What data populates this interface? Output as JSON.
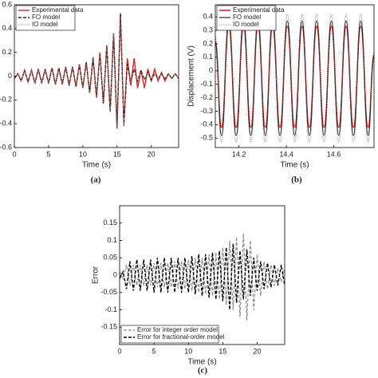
{
  "chart_data": [
    {
      "type": "line",
      "caption": "(a)",
      "xlabel": "Time (s)",
      "smooth": false,
      "legend": "top-left",
      "xlim": [
        0,
        24
      ],
      "xticks": [
        0,
        5,
        10,
        15,
        20
      ],
      "ylim": [
        -0.6,
        0.6
      ],
      "yticks": [
        -0.6,
        -0.4,
        -0.2,
        0,
        0.2,
        0.4,
        0.6
      ],
      "x": [
        0,
        0.5,
        1,
        1.5,
        2,
        2.5,
        3,
        3.5,
        4,
        4.5,
        5,
        5.5,
        6,
        6.5,
        7,
        7.5,
        8,
        8.5,
        9,
        9.5,
        10,
        10.5,
        11,
        11.5,
        12,
        12.5,
        13,
        13.5,
        14,
        14.5,
        15,
        15.5,
        16,
        16.5,
        17,
        17.5,
        18,
        18.5,
        19,
        19.5,
        20,
        20.5,
        21,
        21.5,
        22,
        22.5,
        23,
        23.5,
        24
      ],
      "series": [
        {
          "name": "Experimental data",
          "color": "#e0201b",
          "dash": "solid",
          "width": 1.4,
          "values": [
            -0.02,
            0.02,
            -0.04,
            0.05,
            -0.05,
            0.05,
            -0.06,
            0.06,
            -0.06,
            0.06,
            -0.06,
            0.07,
            -0.07,
            0.07,
            -0.07,
            0.08,
            -0.08,
            0.08,
            -0.09,
            0.1,
            -0.1,
            0.12,
            -0.14,
            0.16,
            -0.18,
            0.2,
            -0.23,
            0.26,
            -0.3,
            0.36,
            -0.44,
            0.53,
            -0.4,
            0.15,
            -0.08,
            0.15,
            -0.1,
            0.05,
            -0.1,
            0.06,
            -0.04,
            0.06,
            -0.04,
            0.03,
            -0.04,
            0.02,
            -0.02,
            0.02,
            -0.02
          ]
        },
        {
          "name": "FO model",
          "color": "#000000",
          "dash": "dashed",
          "width": 1.2,
          "values": [
            -0.02,
            0.02,
            -0.04,
            0.05,
            -0.05,
            0.05,
            -0.06,
            0.06,
            -0.06,
            0.06,
            -0.06,
            0.07,
            -0.07,
            0.07,
            -0.07,
            0.08,
            -0.08,
            0.08,
            -0.09,
            0.1,
            -0.1,
            0.12,
            -0.14,
            0.16,
            -0.18,
            0.2,
            -0.23,
            0.26,
            -0.3,
            0.36,
            -0.44,
            0.52,
            -0.42,
            0.1,
            -0.05,
            0.06,
            -0.04,
            0.05,
            -0.03,
            0.03,
            -0.03,
            0.02,
            -0.02,
            0.02,
            -0.02,
            0.02,
            -0.02,
            0.02,
            -0.02
          ]
        },
        {
          "name": "IO model",
          "color": "#8c8c8c",
          "dash": "dotted",
          "width": 1,
          "values": [
            -0.02,
            0.02,
            -0.04,
            0.05,
            -0.05,
            0.05,
            -0.06,
            0.06,
            -0.06,
            0.06,
            -0.06,
            0.07,
            -0.07,
            0.07,
            -0.07,
            0.08,
            -0.08,
            0.08,
            -0.09,
            0.1,
            -0.1,
            0.12,
            -0.14,
            0.16,
            -0.18,
            0.2,
            -0.23,
            0.26,
            -0.3,
            0.36,
            -0.44,
            0.5,
            -0.42,
            0.08,
            -0.05,
            0.05,
            -0.04,
            0.04,
            -0.03,
            0.03,
            -0.02,
            0.02,
            -0.02,
            0.02,
            -0.02,
            0.02,
            -0.02,
            0.02,
            -0.02
          ]
        }
      ]
    },
    {
      "type": "line",
      "caption": "(b)",
      "xlabel": "Time (s)",
      "ylabel": "Displacement (V)",
      "smooth": true,
      "legend": "top-left",
      "xlim": [
        14.1,
        14.77
      ],
      "xticks": [
        14.2,
        14.4,
        14.6
      ],
      "ylim": [
        -0.57,
        0.49
      ],
      "yticks": [
        -0.5,
        -0.4,
        -0.3,
        -0.2,
        -0.1,
        0,
        0.1,
        0.2,
        0.3,
        0.4
      ],
      "x": [
        14.1,
        14.126,
        14.157,
        14.188,
        14.219,
        14.25,
        14.28,
        14.311,
        14.342,
        14.373,
        14.404,
        14.435,
        14.466,
        14.497,
        14.528,
        14.559,
        14.59,
        14.621,
        14.652,
        14.683,
        14.714,
        14.745,
        14.77
      ],
      "series": [
        {
          "name": "Experimental data",
          "color": "#e0201b",
          "dash": "solid",
          "width": 1.6,
          "values": [
            0.2,
            -0.42,
            0.33,
            -0.42,
            0.33,
            -0.42,
            0.33,
            -0.42,
            0.33,
            -0.42,
            0.33,
            -0.42,
            0.33,
            -0.42,
            0.33,
            -0.42,
            0.33,
            -0.42,
            0.33,
            -0.42,
            0.33,
            -0.42,
            0.1
          ]
        },
        {
          "name": "FO model",
          "color": "#000000",
          "dash": "solid",
          "width": 1,
          "values": [
            0.22,
            -0.48,
            0.37,
            -0.48,
            0.37,
            -0.48,
            0.37,
            -0.48,
            0.37,
            -0.48,
            0.37,
            -0.48,
            0.37,
            -0.48,
            0.37,
            -0.48,
            0.37,
            -0.48,
            0.37,
            -0.48,
            0.37,
            -0.48,
            0.12
          ]
        },
        {
          "name": "IO model",
          "color": "#8c8c8c",
          "dash": "dotted",
          "width": 1,
          "values": [
            0.25,
            -0.53,
            0.42,
            -0.53,
            0.42,
            -0.53,
            0.42,
            -0.53,
            0.42,
            -0.53,
            0.42,
            -0.53,
            0.42,
            -0.53,
            0.42,
            -0.53,
            0.42,
            -0.53,
            0.42,
            -0.53,
            0.42,
            -0.53,
            0.14
          ]
        }
      ]
    },
    {
      "type": "line",
      "caption": "(c)",
      "xlabel": "Time (s)",
      "ylabel": "Error",
      "smooth": false,
      "legend": "bottom-left",
      "xlim": [
        0,
        24
      ],
      "xticks": [
        0,
        5,
        10,
        15,
        20
      ],
      "ylim": [
        -0.2,
        0.2
      ],
      "yticks": [
        -0.15,
        -0.1,
        -0.05,
        0,
        0.05,
        0.1,
        0.15
      ],
      "x": [
        0,
        0.5,
        1,
        1.5,
        2,
        2.5,
        3,
        3.5,
        4,
        4.5,
        5,
        5.5,
        6,
        6.5,
        7,
        7.5,
        8,
        8.5,
        9,
        9.5,
        10,
        10.5,
        11,
        11.5,
        12,
        12.5,
        13,
        13.5,
        14,
        14.5,
        15,
        15.5,
        16,
        16.5,
        17,
        17.5,
        18,
        18.5,
        19,
        19.5,
        20,
        20.5,
        21,
        21.5,
        22,
        22.5,
        23,
        23.5,
        24
      ],
      "series": [
        {
          "name": "Error for integer order model",
          "color": "#8c8c8c",
          "dash": "dashed",
          "width": 1.2,
          "values": [
            0.01,
            -0.01,
            0.03,
            -0.03,
            0.03,
            -0.03,
            0.03,
            -0.03,
            0.03,
            -0.03,
            0.035,
            -0.035,
            0.035,
            -0.035,
            0.035,
            -0.035,
            0.04,
            -0.04,
            0.04,
            -0.04,
            0.045,
            -0.045,
            0.05,
            -0.05,
            0.05,
            -0.055,
            0.06,
            -0.06,
            0.065,
            -0.07,
            0.08,
            -0.085,
            0.1,
            -0.1,
            0.11,
            -0.12,
            0.12,
            -0.13,
            0.1,
            -0.1,
            0.06,
            -0.06,
            0.04,
            -0.04,
            0.03,
            -0.03,
            0.02,
            -0.02,
            0.02
          ]
        },
        {
          "name": "Error for fractional-order model",
          "color": "#000000",
          "dash": "dashed",
          "width": 1.4,
          "values": [
            -0.01,
            0.01,
            -0.04,
            0.04,
            -0.045,
            0.045,
            -0.045,
            0.045,
            -0.045,
            0.045,
            -0.05,
            0.05,
            -0.05,
            0.05,
            -0.05,
            0.05,
            -0.05,
            0.05,
            -0.05,
            0.05,
            -0.05,
            0.055,
            -0.055,
            0.06,
            -0.06,
            0.06,
            -0.065,
            0.065,
            -0.07,
            0.07,
            -0.075,
            0.08,
            -0.1,
            0.09,
            -0.08,
            0.07,
            -0.07,
            0.075,
            -0.06,
            0.05,
            -0.045,
            0.04,
            -0.04,
            0.035,
            -0.035,
            0.03,
            -0.03,
            0.03,
            -0.03
          ]
        }
      ]
    }
  ]
}
